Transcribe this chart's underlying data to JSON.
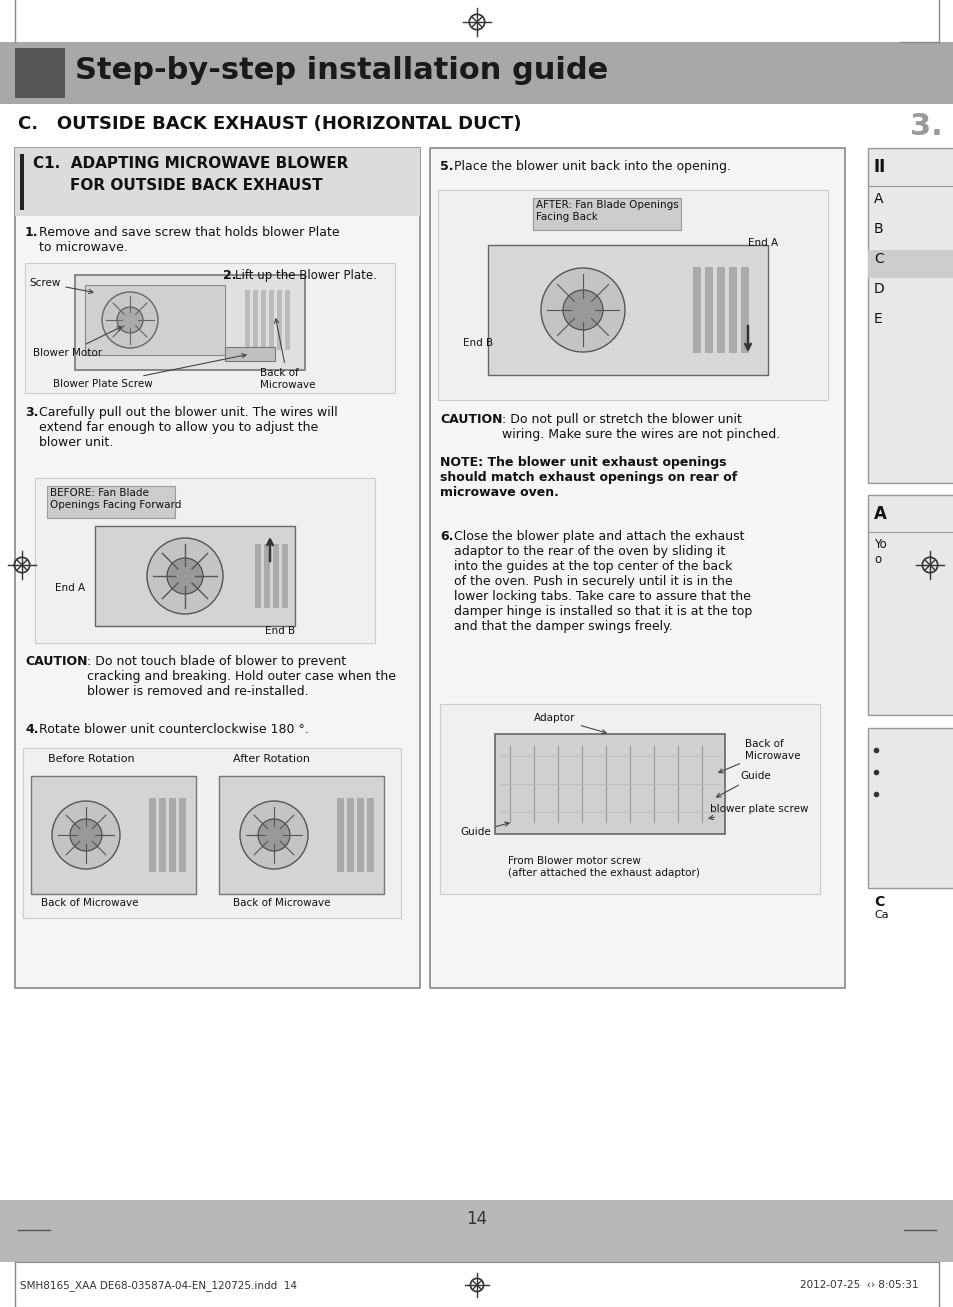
{
  "page_bg": "#ffffff",
  "header_bg": "#a8a8a8",
  "header_text": "Step-by-step installation guide",
  "header_text_color": "#1a1a1a",
  "header_bar_color": "#555555",
  "section_title": "C.   OUTSIDE BACK EXHAUST (HORIZONTAL DUCT)",
  "section_title_color": "#111111",
  "right_number": "3.",
  "left_box_bg": "#f5f5f5",
  "left_box_border": "#888888",
  "left_box_title_line1": "C1.  ADAPTING MICROWAVE BLOWER",
  "left_box_title_line2": "FOR OUTSIDE BACK EXHAUST",
  "bottom_bar_bg": "#b8b8b8",
  "page_number": "14",
  "footer_left": "SMH8165_XAA DE68-03587A-04-EN_120725.indd  14",
  "footer_right": "2012-07-25  ‹› 8:05:31",
  "right_sidebar_items": [
    "A",
    "B",
    "C",
    "D",
    "E"
  ],
  "crosshair_color": "#333333"
}
